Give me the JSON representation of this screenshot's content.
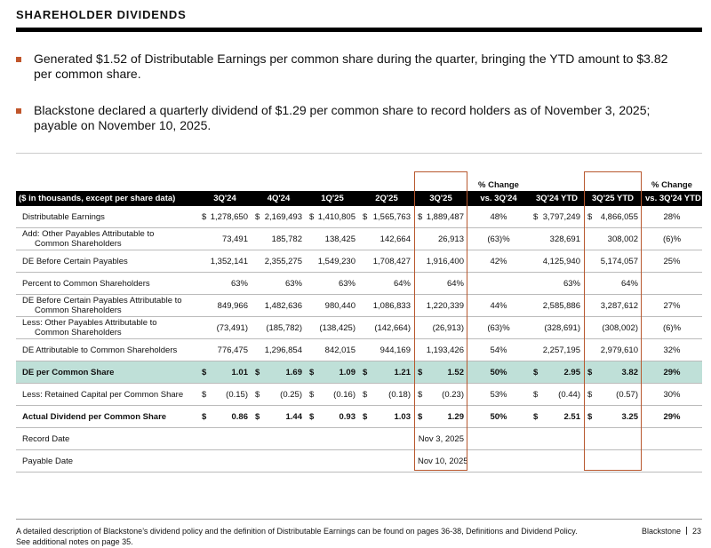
{
  "header": {
    "title": "SHAREHOLDER DIVIDENDS"
  },
  "bullets": [
    "Generated $1.52 of Distributable Earnings per common share during the quarter, bringing the YTD amount to $3.82 per common share.",
    "Blackstone declared a quarterly dividend of $1.29 per common share to record holders as of November 3, 2025; payable on November 10, 2025."
  ],
  "table": {
    "columns": [
      "($ in thousands, except per share data)",
      "3Q'24",
      "4Q'24",
      "1Q'25",
      "2Q'25",
      "3Q'25",
      [
        "% Change",
        "vs. 3Q'24"
      ],
      "3Q'24 YTD",
      "3Q'25 YTD",
      [
        "% Change",
        "vs. 3Q'24 YTD"
      ]
    ],
    "rows": [
      {
        "label": "Distributable Earnings",
        "cells": [
          [
            "$",
            "1,278,650"
          ],
          [
            "$",
            "2,169,493"
          ],
          [
            "$",
            "1,410,805"
          ],
          [
            "$",
            "1,565,763"
          ],
          [
            "$",
            "1,889,487"
          ],
          "48%",
          [
            "$",
            "3,797,249"
          ],
          [
            "$",
            "4,866,055"
          ],
          "28%"
        ]
      },
      {
        "label": [
          "Add: Other Payables Attributable to",
          "Common Shareholders"
        ],
        "cells": [
          "73,491",
          "185,782",
          "138,425",
          "142,664",
          "26,913",
          "(63)%",
          "328,691",
          "308,002",
          "(6)%"
        ]
      },
      {
        "label": "DE Before Certain Payables",
        "cells": [
          "1,352,141",
          "2,355,275",
          "1,549,230",
          "1,708,427",
          "1,916,400",
          "42%",
          "4,125,940",
          "5,174,057",
          "25%"
        ]
      },
      {
        "label": "Percent to Common Shareholders",
        "cells": [
          "63%",
          "63%",
          "63%",
          "64%",
          "64%",
          null,
          "63%",
          "64%",
          null
        ]
      },
      {
        "label": [
          "DE Before Certain Payables Attributable to",
          "Common Shareholders"
        ],
        "cells": [
          "849,966",
          "1,482,636",
          "980,440",
          "1,086,833",
          "1,220,339",
          "44%",
          "2,585,886",
          "3,287,612",
          "27%"
        ]
      },
      {
        "label": [
          "Less: Other Payables Attributable to",
          "Common Shareholders"
        ],
        "cells": [
          "(73,491)",
          "(185,782)",
          "(138,425)",
          "(142,664)",
          "(26,913)",
          "(63)%",
          "(328,691)",
          "(308,002)",
          "(6)%"
        ]
      },
      {
        "label": "DE Attributable to Common Shareholders",
        "cells": [
          "776,475",
          "1,296,854",
          "842,015",
          "944,169",
          "1,193,426",
          "54%",
          "2,257,195",
          "2,979,610",
          "32%"
        ]
      },
      {
        "label": "DE per Common Share",
        "highlight": true,
        "bold": true,
        "cells": [
          [
            "$",
            "1.01"
          ],
          [
            "$",
            "1.69"
          ],
          [
            "$",
            "1.09"
          ],
          [
            "$",
            "1.21"
          ],
          [
            "$",
            "1.52"
          ],
          "50%",
          [
            "$",
            "2.95"
          ],
          [
            "$",
            "3.82"
          ],
          "29%"
        ]
      },
      {
        "label": "Less: Retained Capital per Common Share",
        "cells": [
          [
            "$",
            "(0.15)"
          ],
          [
            "$",
            "(0.25)"
          ],
          [
            "$",
            "(0.16)"
          ],
          [
            "$",
            "(0.18)"
          ],
          [
            "$",
            "(0.23)"
          ],
          "53%",
          [
            "$",
            "(0.44)"
          ],
          [
            "$",
            "(0.57)"
          ],
          "30%"
        ]
      },
      {
        "label": "Actual Dividend per Common Share",
        "bold": true,
        "cells": [
          [
            "$",
            "0.86"
          ],
          [
            "$",
            "1.44"
          ],
          [
            "$",
            "0.93"
          ],
          [
            "$",
            "1.03"
          ],
          [
            "$",
            "1.29"
          ],
          "50%",
          [
            "$",
            "2.51"
          ],
          [
            "$",
            "3.25"
          ],
          "29%"
        ]
      },
      {
        "label": "Record Date",
        "cells": [
          null,
          null,
          null,
          null,
          "Nov 3, 2025",
          null,
          null,
          null,
          null
        ]
      },
      {
        "label": "Payable Date",
        "cells": [
          null,
          null,
          null,
          null,
          "Nov 10, 2025",
          null,
          null,
          null,
          null
        ]
      }
    ]
  },
  "footer": {
    "note": [
      "A detailed description of Blackstone’s dividend policy and the definition of Distributable Earnings can be found on pages 36-38, Definitions and Dividend Policy.",
      "See additional notes on page 35."
    ],
    "brand": "Blackstone",
    "page": "23"
  }
}
